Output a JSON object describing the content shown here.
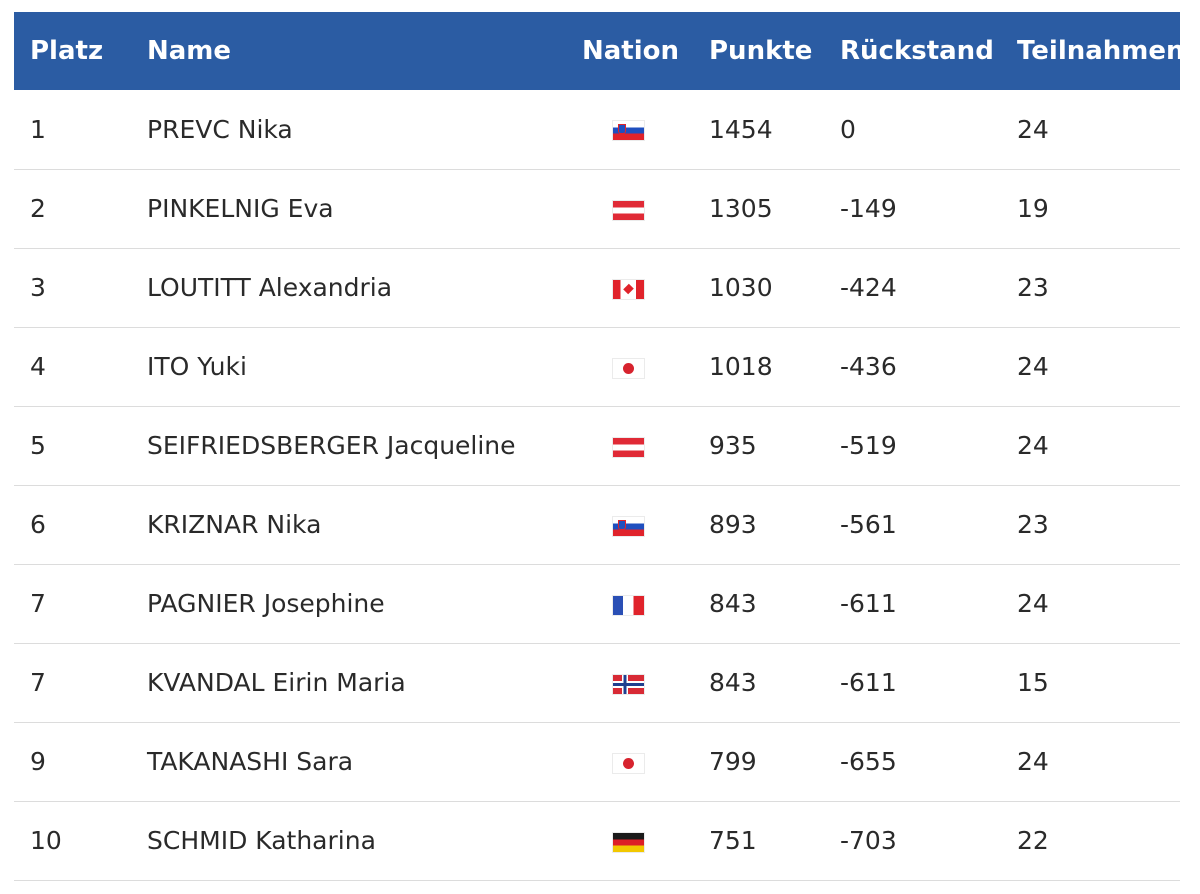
{
  "table": {
    "headers": {
      "platz": "Platz",
      "name": "Name",
      "nation": "Nation",
      "punkte": "Punkte",
      "rueckstand": "Rückstand",
      "teilnahmen": "Teilnahmen"
    },
    "rows": [
      {
        "platz": "1",
        "name": "PREVC Nika",
        "flag": "slovenia-flag-icon",
        "punkte": "1454",
        "rueckstand": "0",
        "teilnahmen": "24"
      },
      {
        "platz": "2",
        "name": "PINKELNIG Eva",
        "flag": "austria-flag-icon",
        "punkte": "1305",
        "rueckstand": "-149",
        "teilnahmen": "19"
      },
      {
        "platz": "3",
        "name": "LOUTITT Alexandria",
        "flag": "canada-flag-icon",
        "punkte": "1030",
        "rueckstand": "-424",
        "teilnahmen": "23"
      },
      {
        "platz": "4",
        "name": "ITO Yuki",
        "flag": "japan-flag-icon",
        "punkte": "1018",
        "rueckstand": "-436",
        "teilnahmen": "24"
      },
      {
        "platz": "5",
        "name": "SEIFRIEDSBERGER Jacqueline",
        "flag": "austria-flag-icon",
        "punkte": "935",
        "rueckstand": "-519",
        "teilnahmen": "24"
      },
      {
        "platz": "6",
        "name": "KRIZNAR Nika",
        "flag": "slovenia-flag-icon",
        "punkte": "893",
        "rueckstand": "-561",
        "teilnahmen": "23"
      },
      {
        "platz": "7",
        "name": "PAGNIER Josephine",
        "flag": "france-flag-icon",
        "punkte": "843",
        "rueckstand": "-611",
        "teilnahmen": "24"
      },
      {
        "platz": "7",
        "name": "KVANDAL Eirin Maria",
        "flag": "norway-flag-icon",
        "punkte": "843",
        "rueckstand": "-611",
        "teilnahmen": "15"
      },
      {
        "platz": "9",
        "name": "TAKANASHI Sara",
        "flag": "japan-flag-icon",
        "punkte": "799",
        "rueckstand": "-655",
        "teilnahmen": "24"
      },
      {
        "platz": "10",
        "name": "SCHMID Katharina",
        "flag": "germany-flag-icon",
        "punkte": "751",
        "rueckstand": "-703",
        "teilnahmen": "22"
      }
    ]
  },
  "colors": {
    "header_bg": "#2b5ca3",
    "header_text": "#ffffff",
    "row_divider": "#dcdcdc"
  }
}
